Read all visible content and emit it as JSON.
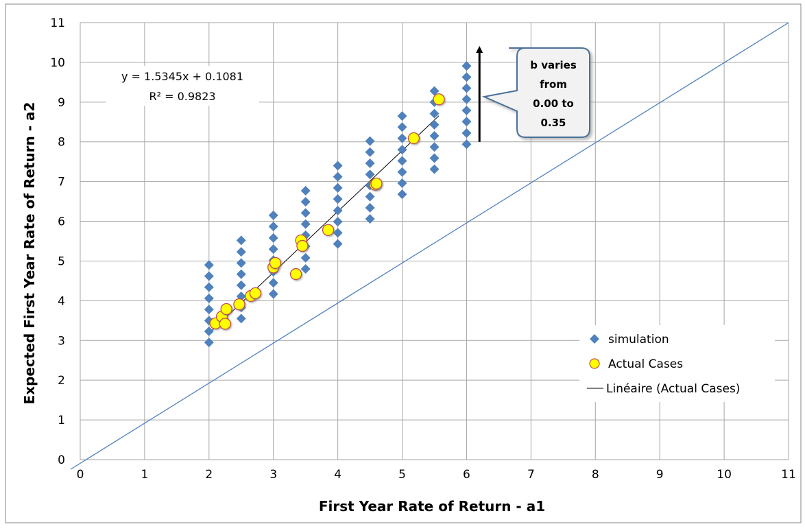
{
  "chart_data": {
    "type": "scatter",
    "xlabel": "First Year Rate of Return - a1",
    "ylabel": "Expected First Year Rate of Return - a2",
    "xlim": [
      0,
      11
    ],
    "ylim": [
      0,
      11
    ],
    "x_ticks": [
      "0",
      "1",
      "2",
      "3",
      "4",
      "5",
      "6",
      "7",
      "8",
      "9",
      "10",
      "11"
    ],
    "y_ticks": [
      "0",
      "1",
      "2",
      "3",
      "4",
      "5",
      "6",
      "7",
      "8",
      "9",
      "10",
      "11"
    ],
    "grid": true,
    "legend_position": "bottom-right",
    "colors": {
      "simulation": "#4F81BD",
      "actual_fill": "#FFFF00",
      "actual_edge": "#C0504D",
      "identity_line": "#4F81BD",
      "trendline": "#000000",
      "grid": "#A6A6A6",
      "arrow": "#000000"
    },
    "series": [
      {
        "name": "simulation",
        "marker": "diamond",
        "points": [
          [
            2.0,
            2.95
          ],
          [
            2.0,
            3.23
          ],
          [
            2.0,
            3.5
          ],
          [
            2.0,
            3.78
          ],
          [
            2.0,
            4.06
          ],
          [
            2.0,
            4.34
          ],
          [
            2.0,
            4.62
          ],
          [
            2.0,
            4.9
          ],
          [
            2.5,
            3.55
          ],
          [
            2.5,
            3.83
          ],
          [
            2.5,
            4.11
          ],
          [
            2.5,
            4.39
          ],
          [
            2.5,
            4.67
          ],
          [
            2.5,
            4.95
          ],
          [
            2.5,
            5.23
          ],
          [
            2.5,
            5.52
          ],
          [
            3.0,
            4.17
          ],
          [
            3.0,
            4.45
          ],
          [
            3.0,
            4.73
          ],
          [
            3.0,
            5.02
          ],
          [
            3.0,
            5.3
          ],
          [
            3.0,
            5.58
          ],
          [
            3.0,
            5.87
          ],
          [
            3.0,
            6.15
          ],
          [
            3.5,
            4.8
          ],
          [
            3.5,
            5.08
          ],
          [
            3.5,
            5.37
          ],
          [
            3.5,
            5.65
          ],
          [
            3.5,
            5.93
          ],
          [
            3.5,
            6.21
          ],
          [
            3.5,
            6.49
          ],
          [
            3.5,
            6.77
          ],
          [
            4.0,
            5.43
          ],
          [
            4.0,
            5.71
          ],
          [
            4.0,
            5.99
          ],
          [
            4.0,
            6.27
          ],
          [
            4.0,
            6.56
          ],
          [
            4.0,
            6.84
          ],
          [
            4.0,
            7.12
          ],
          [
            4.0,
            7.4
          ],
          [
            4.5,
            6.06
          ],
          [
            4.5,
            6.34
          ],
          [
            4.5,
            6.62
          ],
          [
            4.5,
            6.9
          ],
          [
            4.5,
            7.18
          ],
          [
            4.5,
            7.46
          ],
          [
            4.5,
            7.74
          ],
          [
            4.5,
            8.02
          ],
          [
            5.0,
            6.68
          ],
          [
            5.0,
            6.96
          ],
          [
            5.0,
            7.24
          ],
          [
            5.0,
            7.52
          ],
          [
            5.0,
            7.8
          ],
          [
            5.0,
            8.09
          ],
          [
            5.0,
            8.37
          ],
          [
            5.0,
            8.65
          ],
          [
            5.5,
            7.31
          ],
          [
            5.5,
            7.59
          ],
          [
            5.5,
            7.87
          ],
          [
            5.5,
            8.15
          ],
          [
            5.5,
            8.43
          ],
          [
            5.5,
            8.71
          ],
          [
            5.5,
            9.0
          ],
          [
            5.5,
            9.28
          ],
          [
            6.0,
            7.94
          ],
          [
            6.0,
            8.22
          ],
          [
            6.0,
            8.51
          ],
          [
            6.0,
            8.79
          ],
          [
            6.0,
            9.07
          ],
          [
            6.0,
            9.35
          ],
          [
            6.0,
            9.63
          ],
          [
            6.0,
            9.91
          ]
        ]
      },
      {
        "name": "Actual Cases",
        "marker": "circle",
        "points": [
          [
            2.1,
            3.43
          ],
          [
            2.2,
            3.6
          ],
          [
            2.25,
            3.42
          ],
          [
            2.27,
            3.79
          ],
          [
            2.47,
            3.91
          ],
          [
            2.65,
            4.12
          ],
          [
            2.72,
            4.19
          ],
          [
            3.0,
            4.84
          ],
          [
            3.03,
            4.95
          ],
          [
            3.35,
            4.67
          ],
          [
            3.43,
            5.52
          ],
          [
            3.45,
            5.38
          ],
          [
            3.85,
            5.78
          ],
          [
            4.58,
            6.92
          ],
          [
            4.6,
            6.95
          ],
          [
            5.18,
            8.09
          ],
          [
            5.57,
            9.07
          ]
        ]
      },
      {
        "name": "Linéaire (Actual Cases)",
        "marker": "line",
        "slope": 1.5345,
        "intercept": 0.1081,
        "x_range": [
          2.0,
          5.57
        ]
      }
    ],
    "identity_line": [
      [
        0,
        0
      ],
      [
        11,
        11
      ]
    ],
    "trendline_equation": "y = 1.5345x + 0.1081",
    "r_squared": "R² = 0.9823",
    "callout": {
      "lines": [
        "b varies",
        "from",
        "0.00 to",
        "0.35"
      ]
    },
    "arrow": {
      "x": 6.2,
      "from_y": 8.0,
      "to_y": 10.5
    }
  }
}
